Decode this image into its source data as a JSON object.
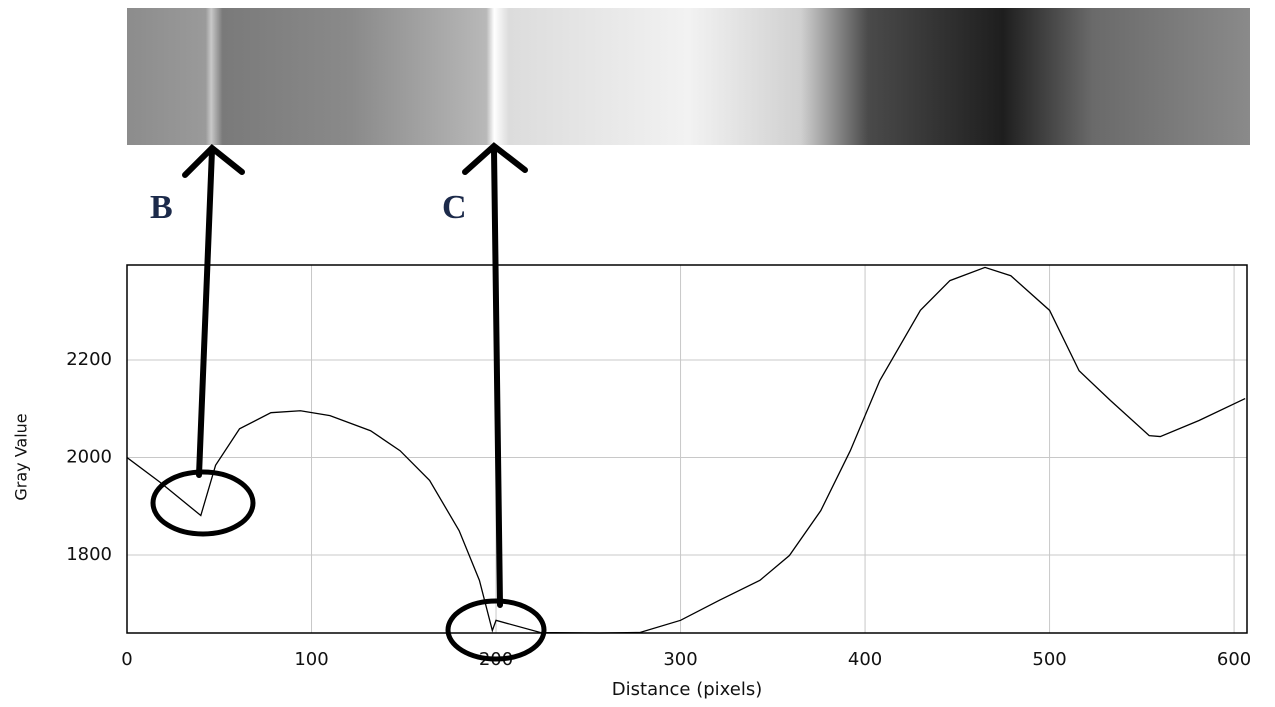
{
  "chart_data": {
    "type": "line",
    "x_label": "Distance (pixels)",
    "y_label": "Gray Value",
    "x": [
      0,
      18,
      40,
      48,
      61,
      78,
      94,
      110,
      132,
      148,
      164,
      180,
      191,
      198,
      200,
      224,
      256,
      278,
      300,
      321,
      343,
      359,
      376,
      392,
      408,
      430,
      446,
      465,
      479,
      500,
      516,
      533,
      554,
      560,
      581,
      606
    ],
    "series": [
      {
        "color": "#000000",
        "values": [
          2000,
          1949,
          1881,
          1984,
          2059,
          2092,
          2096,
          2086,
          2055,
          2014,
          1953,
          1850,
          1748,
          1645,
          1666,
          1641,
          1640,
          1641,
          1666,
          1707,
          1748,
          1799,
          1891,
          2014,
          2158,
          2302,
          2363,
          2390,
          2373,
          2302,
          2178,
          2117,
          2045,
          2043,
          2076,
          2121
        ]
      }
    ],
    "xlim": [
      0,
      607
    ],
    "ylim": [
      1640,
      2395
    ],
    "xticks": [
      0,
      100,
      200,
      300,
      400,
      500,
      600
    ],
    "yticks": [
      1800,
      2000,
      2200
    ],
    "grid": true,
    "annotations": [
      "B",
      "C"
    ]
  }
}
